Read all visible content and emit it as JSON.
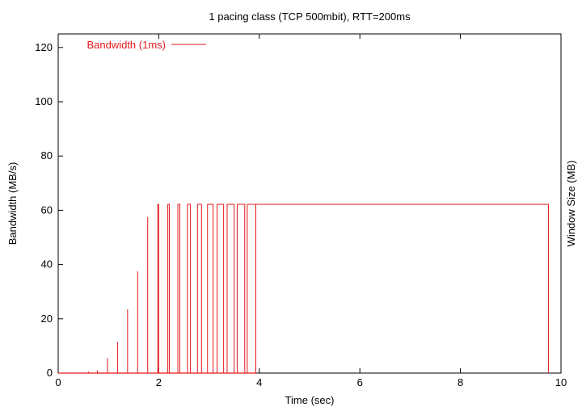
{
  "chart_data": {
    "type": "line",
    "title": "1 pacing class (TCP 500mbit), RTT=200ms",
    "xlabel": "Time (sec)",
    "ylabel": "Bandwidth (MB/s)",
    "y2label": "Window Size (MB)",
    "xlim": [
      0,
      10
    ],
    "ylim": [
      0,
      125
    ],
    "xticks": [
      0,
      2,
      4,
      6,
      8,
      10
    ],
    "yticks": [
      0,
      20,
      40,
      60,
      80,
      100,
      120
    ],
    "grid": false,
    "legend_position": "top-left",
    "series": [
      {
        "name": "Bandwidth (1ms)",
        "color": "#e41a1c",
        "spikes": [
          {
            "t": 0.6,
            "v": 0.6
          },
          {
            "t": 0.78,
            "v": 1.0
          },
          {
            "t": 0.98,
            "v": 5.5
          },
          {
            "t": 1.18,
            "v": 11.5
          },
          {
            "t": 1.38,
            "v": 23.5
          },
          {
            "t": 1.58,
            "v": 37.5
          },
          {
            "t": 1.78,
            "v": 57.5
          }
        ],
        "plateaus": [
          {
            "start": 1.98,
            "end": 2.0,
            "v": 62.2
          },
          {
            "start": 2.18,
            "end": 2.21,
            "v": 62.2
          },
          {
            "start": 2.38,
            "end": 2.42,
            "v": 62.2
          },
          {
            "start": 2.57,
            "end": 2.63,
            "v": 62.2
          },
          {
            "start": 2.77,
            "end": 2.85,
            "v": 62.2
          },
          {
            "start": 2.97,
            "end": 3.08,
            "v": 62.2
          },
          {
            "start": 3.16,
            "end": 3.29,
            "v": 62.2
          },
          {
            "start": 3.36,
            "end": 3.5,
            "v": 62.2
          },
          {
            "start": 3.56,
            "end": 3.71,
            "v": 62.2
          },
          {
            "start": 3.76,
            "end": 3.93,
            "v": 62.2
          },
          {
            "start": 3.93,
            "end": 9.75,
            "v": 62.2
          }
        ]
      }
    ]
  }
}
